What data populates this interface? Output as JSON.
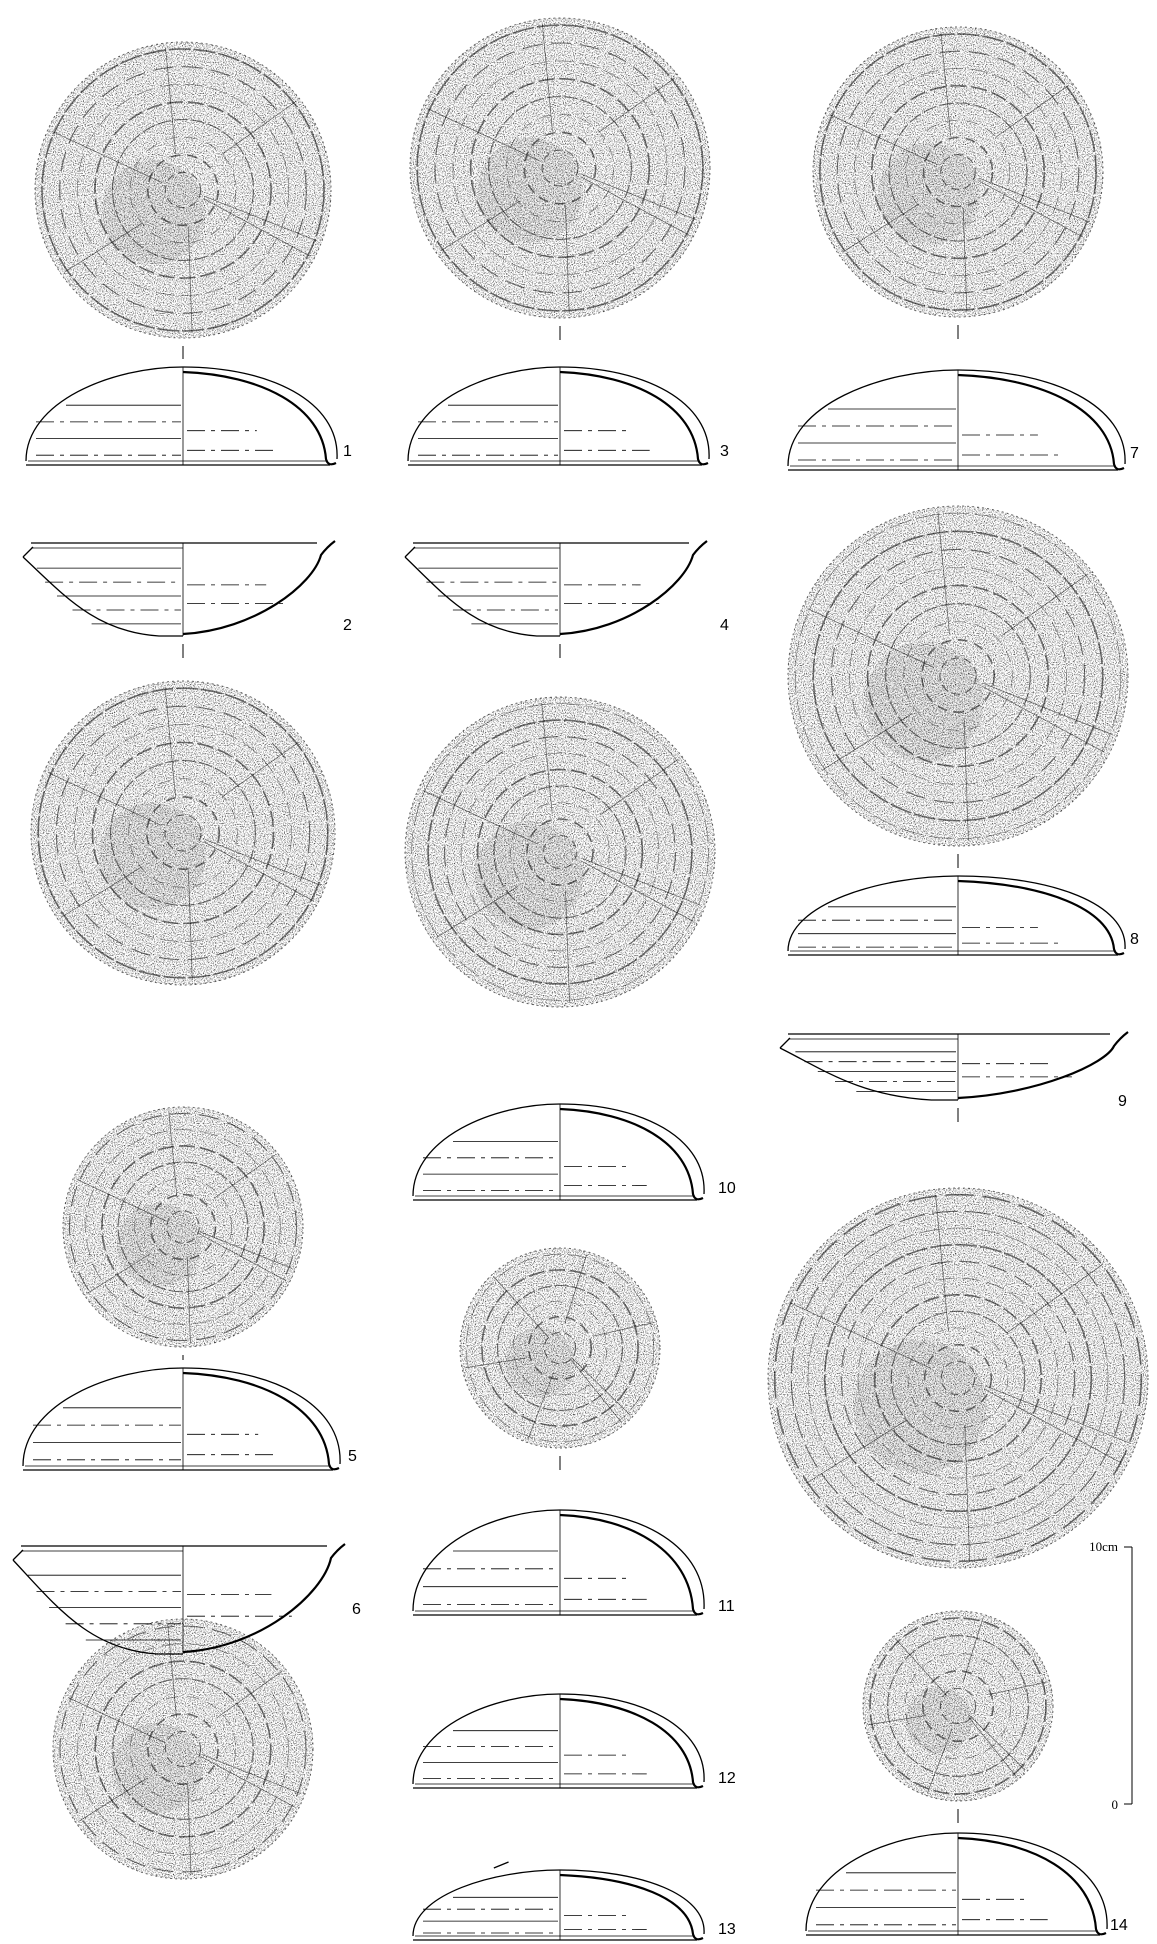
{
  "figure": {
    "scale_bar": {
      "top_label": "10cm",
      "bottom_label": "0"
    },
    "specimens": [
      {
        "id": "1",
        "label": "1",
        "form": "lid",
        "has_rubbing": true
      },
      {
        "id": "2",
        "label": "2",
        "form": "bowl",
        "has_rubbing": true
      },
      {
        "id": "3",
        "label": "3",
        "form": "lid",
        "has_rubbing": true
      },
      {
        "id": "4",
        "label": "4",
        "form": "bowl",
        "has_rubbing": true
      },
      {
        "id": "5",
        "label": "5",
        "form": "lid",
        "has_rubbing": true
      },
      {
        "id": "6",
        "label": "6",
        "form": "bowl",
        "has_rubbing": true
      },
      {
        "id": "7",
        "label": "7",
        "form": "lid",
        "has_rubbing": true
      },
      {
        "id": "8",
        "label": "8",
        "form": "lid",
        "has_rubbing": true
      },
      {
        "id": "9",
        "label": "9",
        "form": "bowl",
        "has_rubbing": true
      },
      {
        "id": "10",
        "label": "10",
        "form": "lid",
        "has_rubbing": false
      },
      {
        "id": "11",
        "label": "11",
        "form": "lid",
        "has_rubbing": true
      },
      {
        "id": "12",
        "label": "12",
        "form": "lid",
        "has_rubbing": false
      },
      {
        "id": "13",
        "label": "13",
        "form": "lid",
        "has_rubbing": false
      },
      {
        "id": "14",
        "label": "14",
        "form": "lid",
        "has_rubbing": true
      }
    ]
  }
}
